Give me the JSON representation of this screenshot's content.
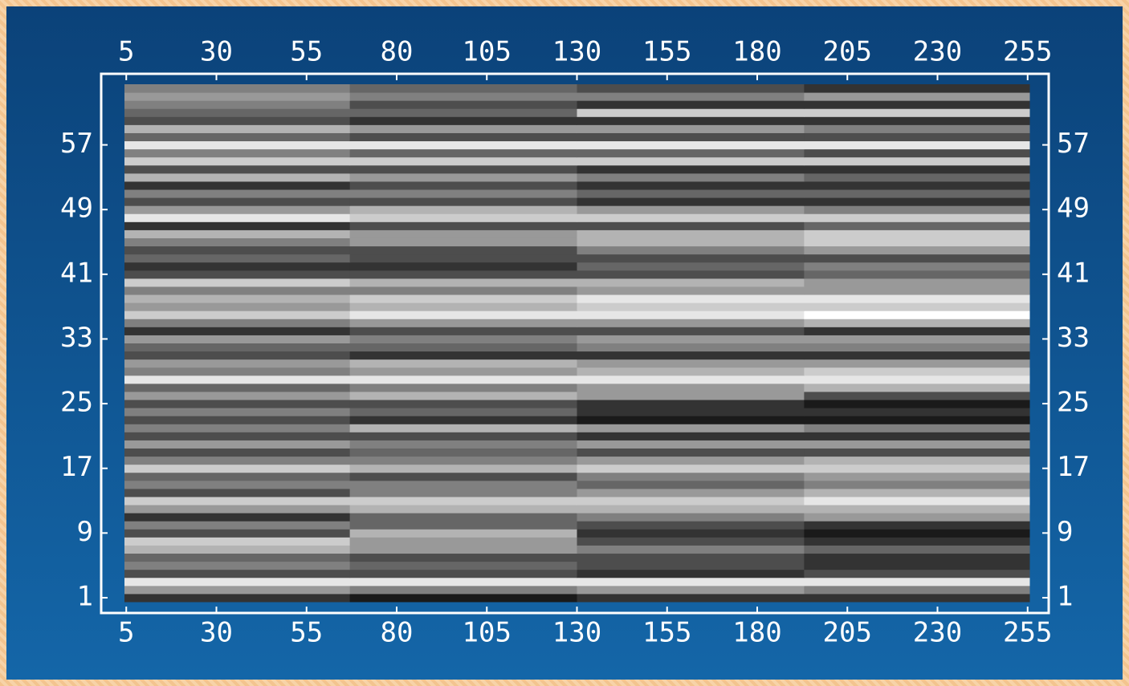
{
  "chart_data": {
    "type": "heatmap",
    "colormap": "gray",
    "x_edges": [
      4.5,
      67,
      130,
      193,
      255.5
    ],
    "y": [
      1,
      2,
      3,
      4,
      5,
      6,
      7,
      8,
      9,
      10,
      11,
      12,
      13,
      14,
      15,
      16,
      17,
      18,
      19,
      20,
      21,
      22,
      23,
      24,
      25,
      26,
      27,
      28,
      29,
      30,
      31,
      32,
      33,
      34,
      35,
      36,
      37,
      38,
      39,
      40,
      41,
      42,
      43,
      44,
      45,
      46,
      47,
      48,
      49,
      50,
      51,
      52,
      53,
      54,
      55,
      56,
      57,
      58,
      59,
      60,
      61,
      62,
      63,
      64
    ],
    "z": [
      [
        0.2,
        0.1,
        0.2,
        0.2
      ],
      [
        0.6,
        0.5,
        0.6,
        0.5
      ],
      [
        0.9,
        0.9,
        0.9,
        0.9
      ],
      [
        0.3,
        0.3,
        0.2,
        0.3
      ],
      [
        0.5,
        0.4,
        0.3,
        0.2
      ],
      [
        0.4,
        0.3,
        0.3,
        0.2
      ],
      [
        0.7,
        0.6,
        0.5,
        0.4
      ],
      [
        0.8,
        0.6,
        0.3,
        0.2
      ],
      [
        0.3,
        0.7,
        0.2,
        0.1
      ],
      [
        0.5,
        0.4,
        0.3,
        0.2
      ],
      [
        0.2,
        0.4,
        0.5,
        0.6
      ],
      [
        0.6,
        0.7,
        0.7,
        0.7
      ],
      [
        0.8,
        0.8,
        0.8,
        0.9
      ],
      [
        0.3,
        0.5,
        0.6,
        0.7
      ],
      [
        0.5,
        0.5,
        0.4,
        0.5
      ],
      [
        0.4,
        0.3,
        0.5,
        0.6
      ],
      [
        0.8,
        0.7,
        0.8,
        0.8
      ],
      [
        0.5,
        0.5,
        0.6,
        0.7
      ],
      [
        0.3,
        0.4,
        0.3,
        0.3
      ],
      [
        0.6,
        0.5,
        0.6,
        0.6
      ],
      [
        0.3,
        0.3,
        0.2,
        0.2
      ],
      [
        0.5,
        0.7,
        0.6,
        0.5
      ],
      [
        0.3,
        0.2,
        0.1,
        0.1
      ],
      [
        0.5,
        0.4,
        0.2,
        0.2
      ],
      [
        0.3,
        0.3,
        0.2,
        0.1
      ],
      [
        0.6,
        0.7,
        0.6,
        0.3
      ],
      [
        0.4,
        0.5,
        0.6,
        0.7
      ],
      [
        0.9,
        0.9,
        0.9,
        0.9
      ],
      [
        0.5,
        0.6,
        0.7,
        0.8
      ],
      [
        0.6,
        0.7,
        0.6,
        0.6
      ],
      [
        0.3,
        0.2,
        0.2,
        0.2
      ],
      [
        0.4,
        0.4,
        0.5,
        0.5
      ],
      [
        0.6,
        0.5,
        0.6,
        0.6
      ],
      [
        0.2,
        0.3,
        0.3,
        0.2
      ],
      [
        0.5,
        0.6,
        0.6,
        0.7
      ],
      [
        0.8,
        0.9,
        0.9,
        1.0
      ],
      [
        0.6,
        0.7,
        0.8,
        0.8
      ],
      [
        0.7,
        0.8,
        0.9,
        0.9
      ],
      [
        0.5,
        0.5,
        0.6,
        0.6
      ],
      [
        0.8,
        0.7,
        0.7,
        0.6
      ],
      [
        0.3,
        0.3,
        0.3,
        0.4
      ],
      [
        0.2,
        0.2,
        0.4,
        0.5
      ],
      [
        0.4,
        0.3,
        0.3,
        0.3
      ],
      [
        0.3,
        0.3,
        0.5,
        0.6
      ],
      [
        0.5,
        0.6,
        0.7,
        0.8
      ],
      [
        0.7,
        0.6,
        0.7,
        0.8
      ],
      [
        0.2,
        0.3,
        0.3,
        0.4
      ],
      [
        0.9,
        0.8,
        0.8,
        0.8
      ],
      [
        0.6,
        0.7,
        0.6,
        0.5
      ],
      [
        0.3,
        0.3,
        0.2,
        0.2
      ],
      [
        0.5,
        0.5,
        0.4,
        0.4
      ],
      [
        0.2,
        0.3,
        0.2,
        0.2
      ],
      [
        0.7,
        0.6,
        0.5,
        0.4
      ],
      [
        0.3,
        0.3,
        0.2,
        0.2
      ],
      [
        0.8,
        0.8,
        0.8,
        0.8
      ],
      [
        0.5,
        0.4,
        0.4,
        0.3
      ],
      [
        0.9,
        0.9,
        0.9,
        0.9
      ],
      [
        0.4,
        0.3,
        0.3,
        0.3
      ],
      [
        0.7,
        0.6,
        0.6,
        0.5
      ],
      [
        0.3,
        0.2,
        0.2,
        0.2
      ],
      [
        0.4,
        0.4,
        0.8,
        0.8
      ],
      [
        0.5,
        0.3,
        0.2,
        0.2
      ],
      [
        0.6,
        0.5,
        0.5,
        0.6
      ],
      [
        0.5,
        0.4,
        0.3,
        0.2
      ]
    ],
    "xlim": [
      4.5,
      255.5
    ],
    "ylim": [
      0.5,
      64.5
    ],
    "xticks": [
      5,
      30,
      55,
      80,
      105,
      130,
      155,
      180,
      205,
      230,
      255
    ],
    "yticks": [
      1,
      9,
      17,
      25,
      33,
      41,
      49,
      57
    ]
  }
}
